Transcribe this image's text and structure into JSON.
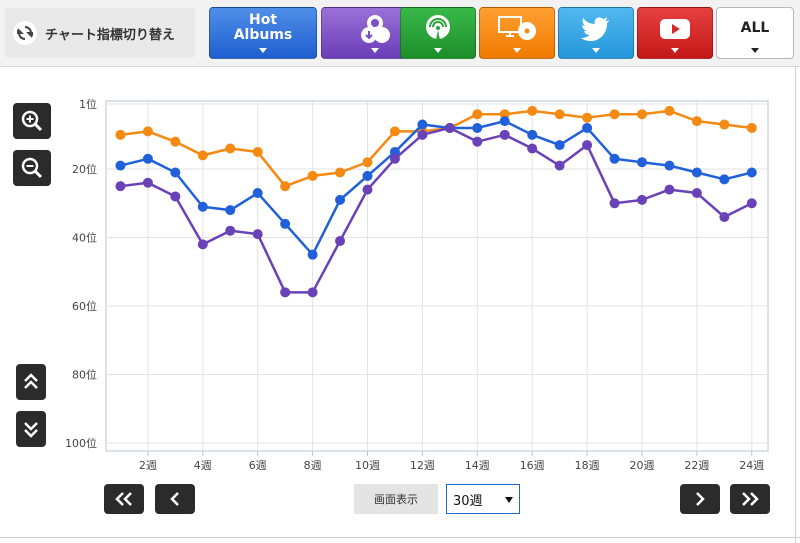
{
  "header": {
    "switch_label": "チャート指標切り替え",
    "tabs": [
      {
        "name": "hot-albums",
        "label_line1": "Hot",
        "label_line2": "Albums",
        "color": "#2a6fdc"
      },
      {
        "name": "download",
        "icon": "download-cloud-icon",
        "color": "#7b4fc8"
      },
      {
        "name": "radio",
        "icon": "radio-broadcast-icon",
        "color": "#27a338"
      },
      {
        "name": "pc-cd",
        "icon": "pc-cd-icon",
        "color": "#f58a12"
      },
      {
        "name": "twitter",
        "icon": "twitter-bird-icon",
        "color": "#33a8e8"
      },
      {
        "name": "youtube",
        "icon": "youtube-play-icon",
        "color": "#d42a2a"
      },
      {
        "name": "all",
        "label": "ALL"
      }
    ]
  },
  "controls": {
    "display_label": "画面表示",
    "selected_range": "30週"
  },
  "chart_data": {
    "type": "line",
    "y_axis": {
      "min": 1,
      "max": 100,
      "reversed": true,
      "ticks": [
        1,
        20,
        40,
        60,
        80,
        100
      ],
      "tick_labels": [
        "1位",
        "20位",
        "40位",
        "60位",
        "80位",
        "100位"
      ]
    },
    "x_axis": {
      "ticks": [
        2,
        4,
        6,
        8,
        10,
        12,
        14,
        16,
        18,
        20,
        22,
        24
      ],
      "tick_labels": [
        "2週",
        "4週",
        "6週",
        "8週",
        "10週",
        "12週",
        "14週",
        "16週",
        "18週",
        "20週",
        "22週",
        "24週"
      ]
    },
    "grid": true,
    "x": [
      1,
      2,
      3,
      4,
      5,
      6,
      7,
      8,
      9,
      10,
      11,
      12,
      13,
      14,
      15,
      16,
      17,
      18,
      19,
      20,
      21,
      22,
      23,
      24
    ],
    "series": [
      {
        "color": "#f58a12",
        "values": [
          10,
          9,
          12,
          16,
          14,
          15,
          25,
          22,
          21,
          18,
          9,
          9,
          8,
          4,
          4,
          3,
          4,
          5,
          4,
          4,
          3,
          6,
          7,
          8
        ]
      },
      {
        "color": "#2060d8",
        "values": [
          19,
          17,
          21,
          31,
          32,
          27,
          36,
          45,
          29,
          22,
          15,
          7,
          8,
          8,
          6,
          10,
          13,
          8,
          17,
          18,
          19,
          21,
          23,
          21
        ]
      },
      {
        "color": "#6a42b8",
        "values": [
          25,
          24,
          28,
          42,
          38,
          39,
          56,
          56,
          41,
          26,
          17,
          10,
          8,
          12,
          10,
          14,
          19,
          13,
          30,
          29,
          26,
          27,
          34,
          30
        ]
      }
    ]
  }
}
